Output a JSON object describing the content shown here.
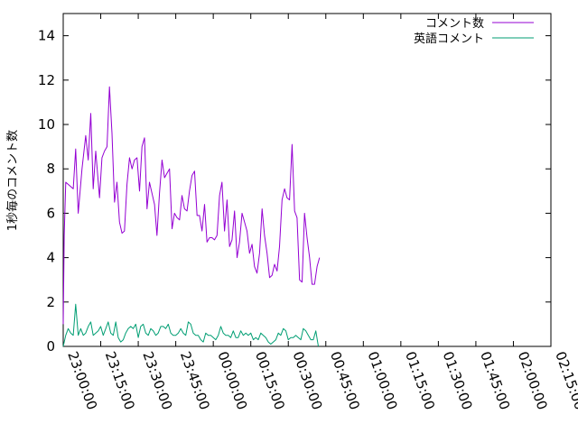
{
  "chart_data": {
    "type": "line",
    "title": "",
    "xlabel": "",
    "ylabel": "1秒毎のコメント数",
    "ylim": [
      0,
      15
    ],
    "yticks": [
      0,
      2,
      4,
      6,
      8,
      10,
      12,
      14
    ],
    "xticks": [
      "23:00:00",
      "23:15:00",
      "23:30:00",
      "23:45:00",
      "00:00:00",
      "00:15:00",
      "00:30:00",
      "00:45:00",
      "01:00:00",
      "01:15:00",
      "01:30:00",
      "01:45:00",
      "02:00:00",
      "02:15:00"
    ],
    "x_unit_minutes_per_tick": 15,
    "legend_position": "top-right",
    "grid": false,
    "series": [
      {
        "name": "コメント数",
        "color": "#9400d3",
        "values": [
          [
            0,
            1.0
          ],
          [
            0.4,
            5.0
          ],
          [
            1,
            7.4
          ],
          [
            2,
            7.3
          ],
          [
            4,
            7.1
          ],
          [
            5,
            8.9
          ],
          [
            6,
            6.0
          ],
          [
            7.5,
            8.0
          ],
          [
            9,
            9.5
          ],
          [
            10,
            8.4
          ],
          [
            11,
            10.5
          ],
          [
            12,
            7.1
          ],
          [
            13,
            8.8
          ],
          [
            14.5,
            6.7
          ],
          [
            15.5,
            8.5
          ],
          [
            16.5,
            8.8
          ],
          [
            17.5,
            9.0
          ],
          [
            18.5,
            11.7
          ],
          [
            19.5,
            9.6
          ],
          [
            20.5,
            6.5
          ],
          [
            21.5,
            7.4
          ],
          [
            22.5,
            5.6
          ],
          [
            23.5,
            5.1
          ],
          [
            24.5,
            5.2
          ],
          [
            25.5,
            7.3
          ],
          [
            26.5,
            8.5
          ],
          [
            27.5,
            8.0
          ],
          [
            28.5,
            8.4
          ],
          [
            29.5,
            8.5
          ],
          [
            30.5,
            7.0
          ],
          [
            31.5,
            9.0
          ],
          [
            32.5,
            9.4
          ],
          [
            33.5,
            6.2
          ],
          [
            34.5,
            7.4
          ],
          [
            35.5,
            6.9
          ],
          [
            36.5,
            6.4
          ],
          [
            37.5,
            5.0
          ],
          [
            38.5,
            6.9
          ],
          [
            39.5,
            8.4
          ],
          [
            40.5,
            7.6
          ],
          [
            41.5,
            7.8
          ],
          [
            42.5,
            8.0
          ],
          [
            43.5,
            5.3
          ],
          [
            44.5,
            6.0
          ],
          [
            45.5,
            5.8
          ],
          [
            46.5,
            5.7
          ],
          [
            47.5,
            6.8
          ],
          [
            48.5,
            6.2
          ],
          [
            49.5,
            6.1
          ],
          [
            50.5,
            7.0
          ],
          [
            51.5,
            7.7
          ],
          [
            52.5,
            7.9
          ],
          [
            53.5,
            5.9
          ],
          [
            54.5,
            5.9
          ],
          [
            55.5,
            5.2
          ],
          [
            56.5,
            6.4
          ],
          [
            57.5,
            4.7
          ],
          [
            58.5,
            4.9
          ],
          [
            59.5,
            4.9
          ],
          [
            60.5,
            4.8
          ],
          [
            61.5,
            5.0
          ],
          [
            62.5,
            6.8
          ],
          [
            63.5,
            7.4
          ],
          [
            64.5,
            5.2
          ],
          [
            65.5,
            6.6
          ],
          [
            66.5,
            4.5
          ],
          [
            67.5,
            4.8
          ],
          [
            68.5,
            6.1
          ],
          [
            69.5,
            4.0
          ],
          [
            70.5,
            4.7
          ],
          [
            71.5,
            6.0
          ],
          [
            72.5,
            5.6
          ],
          [
            73.5,
            5.2
          ],
          [
            74.5,
            4.2
          ],
          [
            75.5,
            4.6
          ],
          [
            76.5,
            3.6
          ],
          [
            77.5,
            3.3
          ],
          [
            78.5,
            4.2
          ],
          [
            79.5,
            6.2
          ],
          [
            80.5,
            5.0
          ],
          [
            81.5,
            4.2
          ],
          [
            82.5,
            3.1
          ],
          [
            83.5,
            3.2
          ],
          [
            84.5,
            3.7
          ],
          [
            85.5,
            3.4
          ],
          [
            86.5,
            4.5
          ],
          [
            87.5,
            6.6
          ],
          [
            88.5,
            7.1
          ],
          [
            89.5,
            6.7
          ],
          [
            90.5,
            6.6
          ],
          [
            91.5,
            9.1
          ],
          [
            92.5,
            6.1
          ],
          [
            93.5,
            5.8
          ],
          [
            94.5,
            3.0
          ],
          [
            95.5,
            2.9
          ],
          [
            96.5,
            6.0
          ],
          [
            97.5,
            4.9
          ],
          [
            98.5,
            4.0
          ],
          [
            99.5,
            2.8
          ],
          [
            100.5,
            2.8
          ],
          [
            101.5,
            3.6
          ],
          [
            102.5,
            4.0
          ]
        ]
      },
      {
        "name": "英語コメント",
        "color": "#009e73",
        "values": [
          [
            0,
            0.0
          ],
          [
            1,
            0.5
          ],
          [
            2,
            0.8
          ],
          [
            3,
            0.6
          ],
          [
            4,
            0.5
          ],
          [
            5,
            1.9
          ],
          [
            6,
            0.5
          ],
          [
            7,
            0.8
          ],
          [
            8,
            0.5
          ],
          [
            9,
            0.6
          ],
          [
            10,
            0.9
          ],
          [
            11,
            1.1
          ],
          [
            12,
            0.5
          ],
          [
            13,
            0.6
          ],
          [
            14,
            0.7
          ],
          [
            15,
            0.9
          ],
          [
            16,
            0.5
          ],
          [
            17,
            0.8
          ],
          [
            18,
            1.1
          ],
          [
            19,
            0.6
          ],
          [
            20,
            0.5
          ],
          [
            21,
            1.1
          ],
          [
            22,
            0.4
          ],
          [
            23,
            0.2
          ],
          [
            24,
            0.3
          ],
          [
            25,
            0.6
          ],
          [
            26,
            0.8
          ],
          [
            27,
            0.9
          ],
          [
            28,
            0.8
          ],
          [
            29,
            1.0
          ],
          [
            30,
            0.4
          ],
          [
            31,
            0.9
          ],
          [
            32,
            1.0
          ],
          [
            33,
            0.6
          ],
          [
            34,
            0.5
          ],
          [
            35,
            0.8
          ],
          [
            36,
            0.7
          ],
          [
            37,
            0.5
          ],
          [
            38,
            0.6
          ],
          [
            39,
            0.9
          ],
          [
            40,
            0.9
          ],
          [
            41,
            0.8
          ],
          [
            42,
            1.0
          ],
          [
            43,
            0.6
          ],
          [
            44,
            0.5
          ],
          [
            45,
            0.5
          ],
          [
            46,
            0.6
          ],
          [
            47,
            0.8
          ],
          [
            48,
            0.6
          ],
          [
            49,
            0.5
          ],
          [
            50,
            1.1
          ],
          [
            51,
            1.0
          ],
          [
            52,
            0.6
          ],
          [
            53,
            0.5
          ],
          [
            54,
            0.5
          ],
          [
            55,
            0.3
          ],
          [
            56,
            0.2
          ],
          [
            57,
            0.6
          ],
          [
            58,
            0.5
          ],
          [
            59,
            0.5
          ],
          [
            60,
            0.4
          ],
          [
            61,
            0.3
          ],
          [
            62,
            0.5
          ],
          [
            63,
            0.9
          ],
          [
            64,
            0.6
          ],
          [
            65,
            0.5
          ],
          [
            66,
            0.5
          ],
          [
            67,
            0.4
          ],
          [
            68,
            0.7
          ],
          [
            69,
            0.4
          ],
          [
            70,
            0.4
          ],
          [
            71,
            0.7
          ],
          [
            72,
            0.5
          ],
          [
            73,
            0.6
          ],
          [
            74,
            0.5
          ],
          [
            75,
            0.6
          ],
          [
            76,
            0.3
          ],
          [
            77,
            0.4
          ],
          [
            78,
            0.3
          ],
          [
            79,
            0.6
          ],
          [
            80,
            0.5
          ],
          [
            81,
            0.4
          ],
          [
            82,
            0.2
          ],
          [
            83,
            0.1
          ],
          [
            84,
            0.2
          ],
          [
            85,
            0.3
          ],
          [
            86,
            0.6
          ],
          [
            87,
            0.5
          ],
          [
            88,
            0.8
          ],
          [
            89,
            0.7
          ],
          [
            90,
            0.3
          ],
          [
            91,
            0.4
          ],
          [
            92,
            0.4
          ],
          [
            93,
            0.5
          ],
          [
            94,
            0.4
          ],
          [
            95,
            0.3
          ],
          [
            96,
            0.8
          ],
          [
            97,
            0.7
          ],
          [
            98,
            0.5
          ],
          [
            99,
            0.3
          ],
          [
            100,
            0.3
          ],
          [
            101,
            0.7
          ],
          [
            102,
            0.0
          ]
        ]
      }
    ]
  }
}
